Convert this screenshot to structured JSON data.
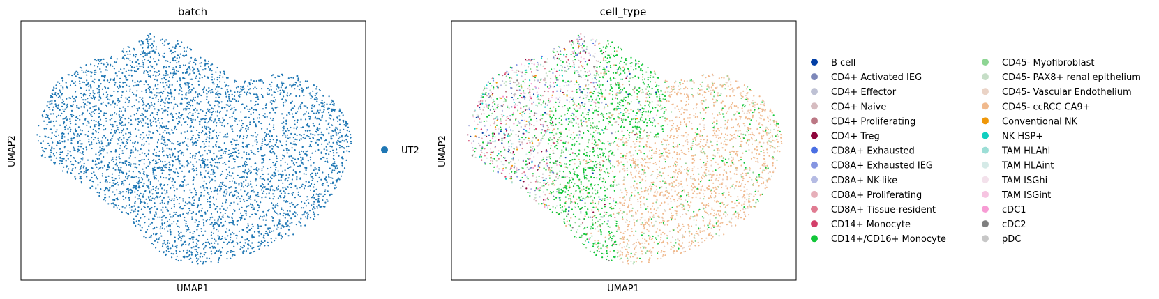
{
  "chart_data": [
    {
      "type": "scatter",
      "title": "batch",
      "xlabel": "UMAP1",
      "ylabel": "UMAP2",
      "grid": false,
      "xticks": [],
      "yticks": [],
      "legend": {
        "placement": "right",
        "entries": [
          {
            "label": "UT2",
            "color": "#1f77b4"
          }
        ]
      }
    },
    {
      "type": "scatter",
      "title": "cell_type",
      "xlabel": "UMAP1",
      "ylabel": "UMAP2",
      "grid": false,
      "xticks": [],
      "yticks": [],
      "legend": {
        "placement": "right",
        "columns": 2,
        "entries": [
          {
            "label": "B cell",
            "color": "#023fa5"
          },
          {
            "label": "CD4+ Activated IEG",
            "color": "#7d87b9"
          },
          {
            "label": "CD4+ Effector",
            "color": "#bec1d4"
          },
          {
            "label": "CD4+ Naive",
            "color": "#d6bcc0"
          },
          {
            "label": "CD4+ Proliferating",
            "color": "#bb7784"
          },
          {
            "label": "CD4+ Treg",
            "color": "#8e063b"
          },
          {
            "label": "CD8A+ Exhausted",
            "color": "#4a6fe3"
          },
          {
            "label": "CD8A+ Exhausted IEG",
            "color": "#8595e1"
          },
          {
            "label": "CD8A+ NK-like",
            "color": "#b5bbe3"
          },
          {
            "label": "CD8A+ Proliferating",
            "color": "#e6afb9"
          },
          {
            "label": "CD8A+ Tissue-resident",
            "color": "#e07b91"
          },
          {
            "label": "CD14+ Monocyte",
            "color": "#d33f6a"
          },
          {
            "label": "CD14+/CD16+ Monocyte",
            "color": "#11c638"
          },
          {
            "label": "CD45- Myofibroblast",
            "color": "#8dd593"
          },
          {
            "label": "CD45- PAX8+ renal epithelium",
            "color": "#c6dec7"
          },
          {
            "label": "CD45- Vascular Endothelium",
            "color": "#ead3c6"
          },
          {
            "label": "CD45- ccRCC CA9+",
            "color": "#f0b98d"
          },
          {
            "label": "Conventional NK",
            "color": "#ef9708"
          },
          {
            "label": "NK HSP+",
            "color": "#0fcfc0"
          },
          {
            "label": "TAM HLAhi",
            "color": "#9cded6"
          },
          {
            "label": "TAM HLAint",
            "color": "#d5eae7"
          },
          {
            "label": "TAM ISGhi",
            "color": "#f3e1eb"
          },
          {
            "label": "TAM ISGint",
            "color": "#f6c4e1"
          },
          {
            "label": "cDC1",
            "color": "#f79cd4"
          },
          {
            "label": "cDC2",
            "color": "#7f7f7f"
          },
          {
            "label": "pDC",
            "color": "#c7c7c7"
          }
        ]
      }
    }
  ]
}
